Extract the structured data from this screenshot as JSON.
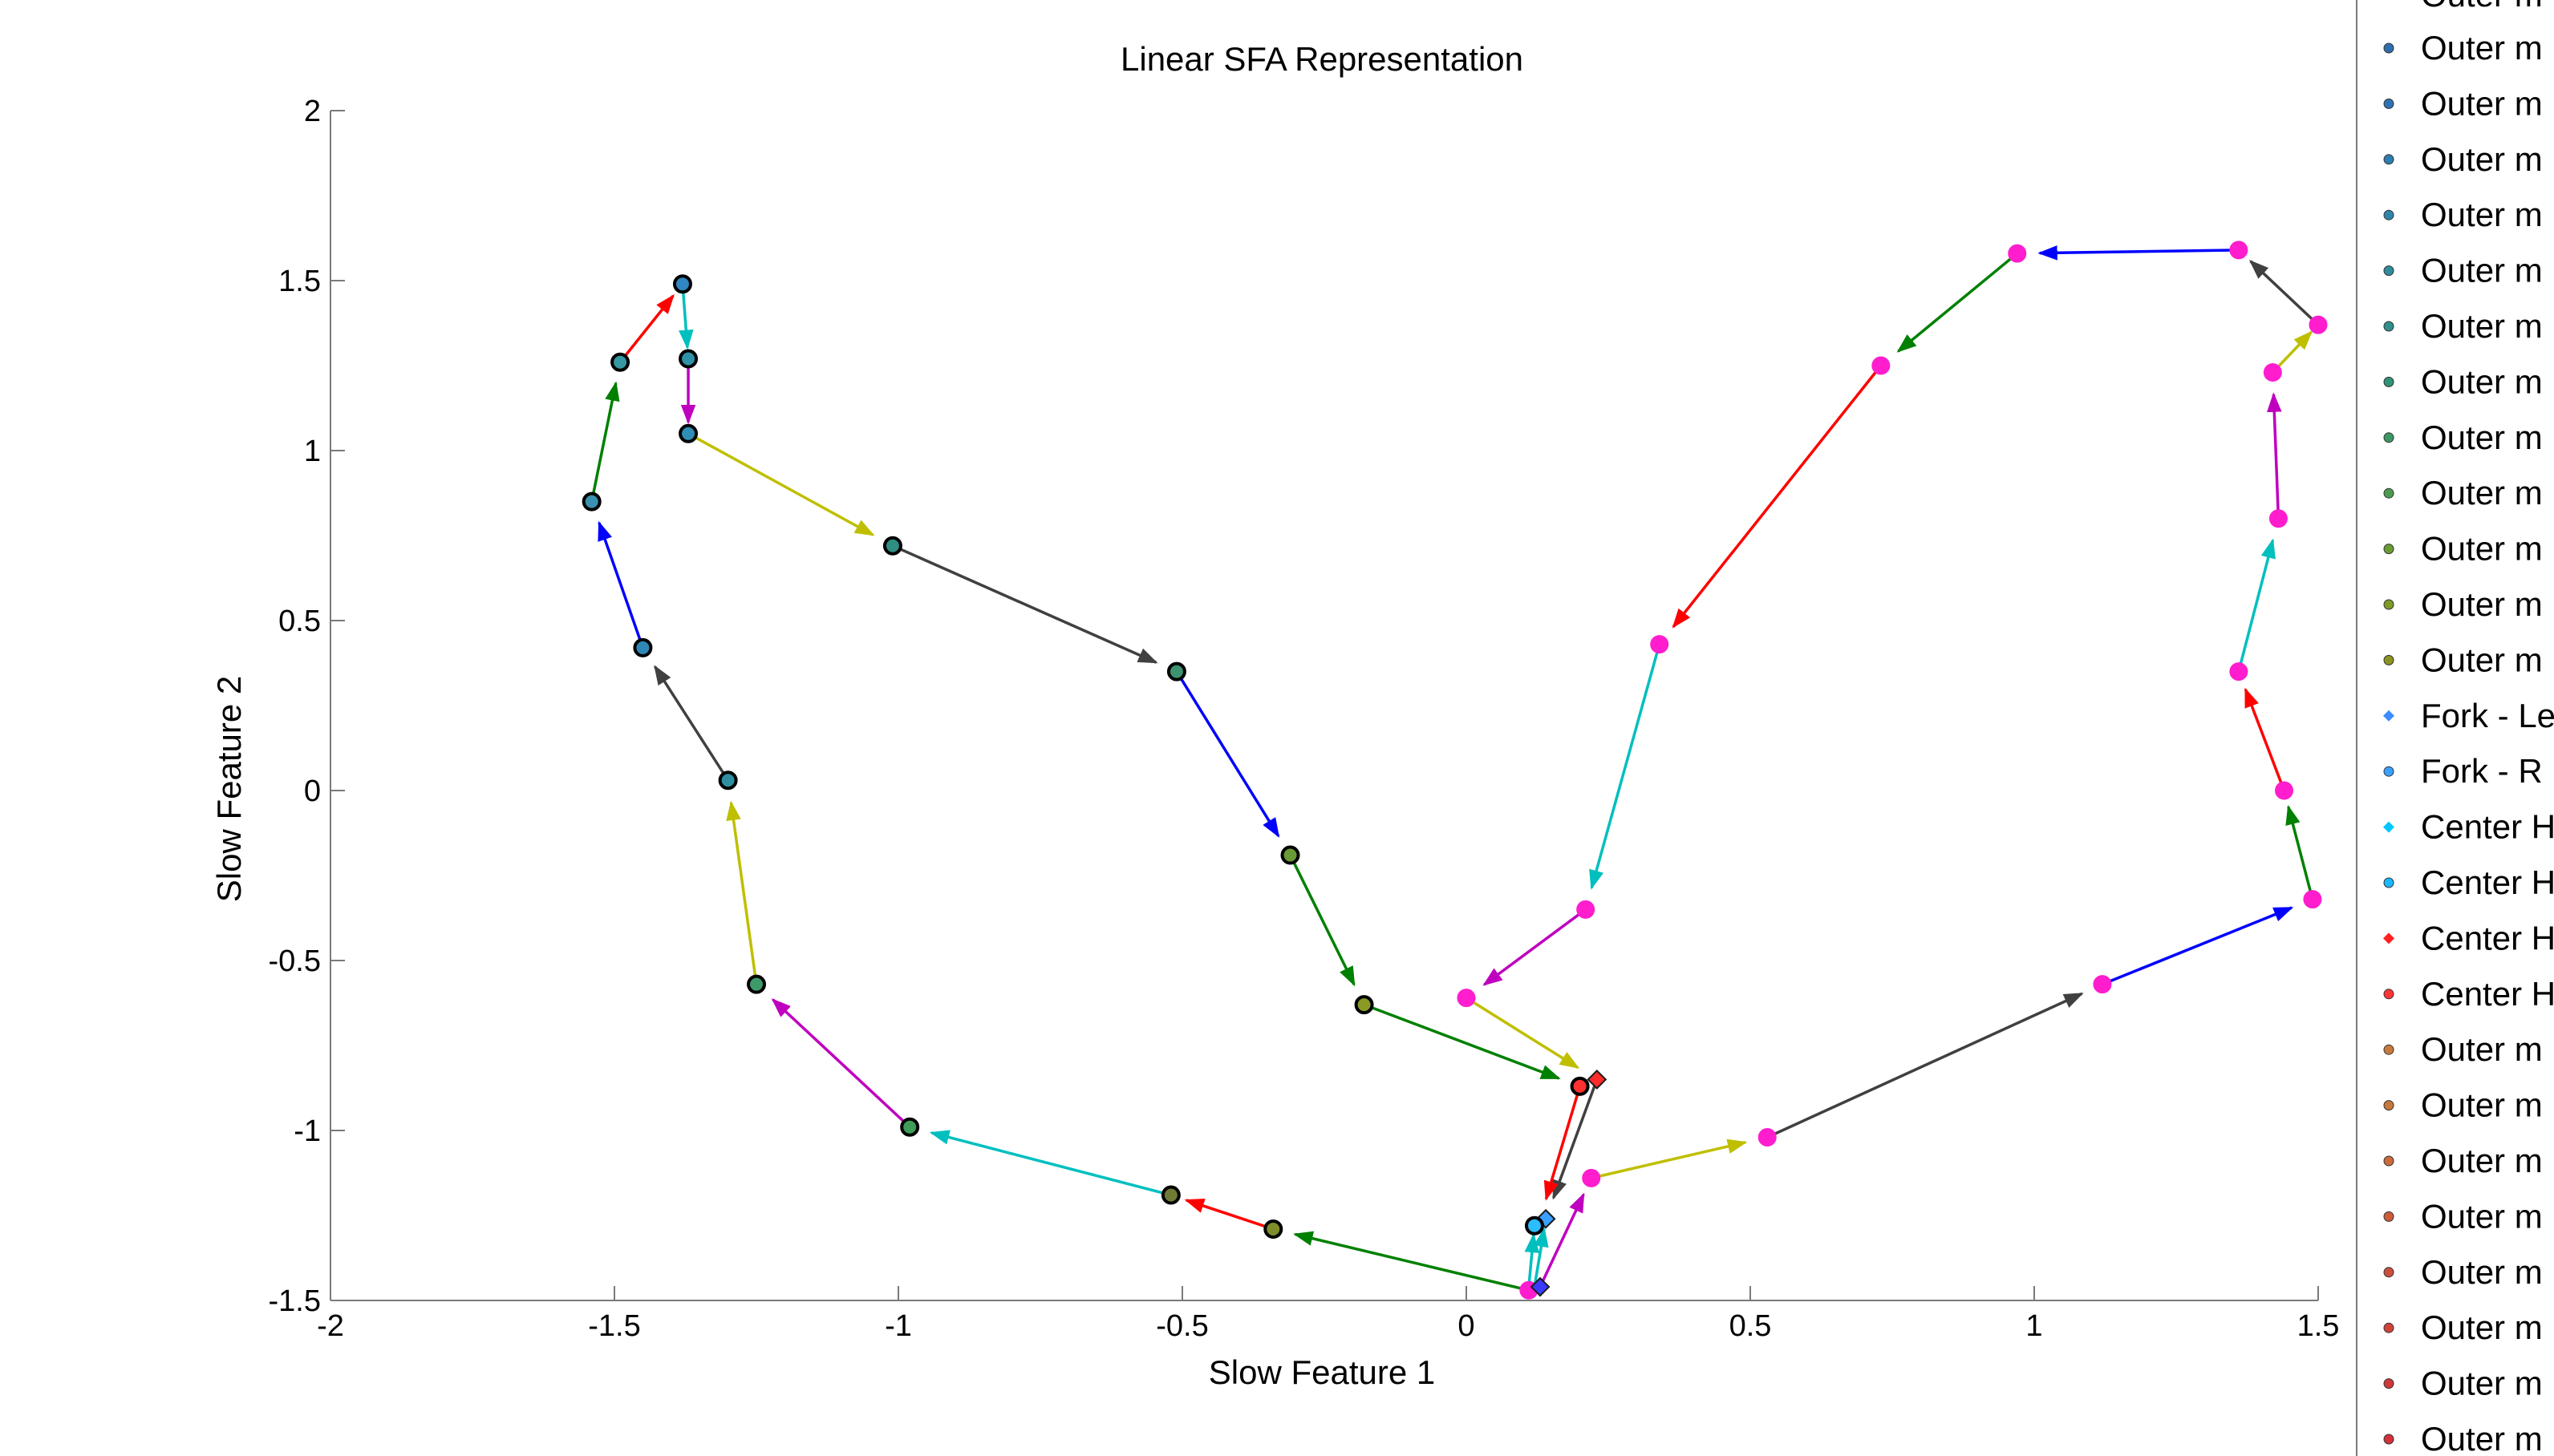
{
  "chart_data": {
    "type": "line",
    "title": "Linear SFA Representation",
    "xlabel": "Slow Feature 1",
    "ylabel": "Slow Feature 2",
    "xlim": [
      -2,
      1.5
    ],
    "ylim": [
      -1.5,
      2
    ],
    "xticks": [
      -2,
      -1.5,
      -1,
      -0.5,
      0,
      0.5,
      1,
      1.5
    ],
    "yticks": [
      -1.5,
      -1,
      -0.5,
      0,
      0.5,
      1,
      1.5,
      2
    ],
    "xtick_labels": [
      "-2",
      "-1.5",
      "-1",
      "-0.5",
      "0",
      "0.5",
      "1",
      "1.5"
    ],
    "ytick_labels": [
      "-1.5",
      "-1",
      "-0.5",
      "0",
      "0.5",
      "1",
      "1.5",
      "2"
    ],
    "grid": false,
    "legend_position": "right, clipped",
    "arrow_colors": [
      "#ff0000",
      "#00bfbf",
      "#bf00bf",
      "#bfbf00",
      "#404040",
      "#0000ff",
      "#008000"
    ],
    "series": [
      {
        "points": [
          {
            "x": 0.11,
            "y": -1.47,
            "color": "#ff1dce",
            "shape": "circle"
          },
          {
            "x": -0.34,
            "y": -1.29,
            "color": "#7f8c2a",
            "shape": "circle"
          },
          {
            "x": -0.52,
            "y": -1.19,
            "color": "#707b35",
            "shape": "circle"
          },
          {
            "x": -0.98,
            "y": -0.99,
            "color": "#3e9d58",
            "shape": "circle"
          },
          {
            "x": -1.25,
            "y": -0.57,
            "color": "#3d9a6b",
            "shape": "circle"
          },
          {
            "x": -1.3,
            "y": 0.03,
            "color": "#2f8fa0",
            "shape": "circle"
          },
          {
            "x": -1.45,
            "y": 0.42,
            "color": "#2f87b5",
            "shape": "circle"
          },
          {
            "x": -1.54,
            "y": 0.85,
            "color": "#3b92b0",
            "shape": "circle"
          },
          {
            "x": -1.49,
            "y": 1.26,
            "color": "#3598a3",
            "shape": "circle"
          },
          {
            "x": -1.38,
            "y": 1.49,
            "color": "#2f86c0",
            "shape": "circle"
          },
          {
            "x": -1.37,
            "y": 1.27,
            "color": "#2f91a8",
            "shape": "circle"
          },
          {
            "x": -1.37,
            "y": 1.05,
            "color": "#2f8eb6",
            "shape": "circle"
          },
          {
            "x": -1.01,
            "y": 0.72,
            "color": "#2f8d82",
            "shape": "circle"
          },
          {
            "x": -0.51,
            "y": 0.35,
            "color": "#3d9370",
            "shape": "circle"
          },
          {
            "x": -0.31,
            "y": -0.19,
            "color": "#6a9a35",
            "shape": "circle"
          },
          {
            "x": -0.18,
            "y": -0.63,
            "color": "#8a9a25",
            "shape": "circle"
          },
          {
            "x": 0.23,
            "y": -0.85,
            "color": "#ff2a2a",
            "shape": "diamond"
          },
          {
            "x": 0.14,
            "y": -1.26,
            "color": "#3aa0ff",
            "shape": "diamond"
          },
          {
            "x": 0.13,
            "y": -1.46,
            "color": "#3b3bff",
            "shape": "diamond"
          },
          {
            "x": 0.12,
            "y": -1.28,
            "color": "#2bbdff",
            "shape": "circle"
          },
          {
            "x": 0.2,
            "y": -0.87,
            "color": "#ff3030",
            "shape": "circle"
          },
          {
            "x": 0.22,
            "y": -1.14,
            "color": "#ff1dce",
            "shape": "circle"
          },
          {
            "x": 0.53,
            "y": -1.02,
            "color": "#ff1dce",
            "shape": "circle"
          },
          {
            "x": 1.12,
            "y": -0.57,
            "color": "#ff1dce",
            "shape": "circle"
          },
          {
            "x": 1.49,
            "y": -0.32,
            "color": "#ff1dce",
            "shape": "circle"
          },
          {
            "x": 1.44,
            "y": 0.0,
            "color": "#ff1dce",
            "shape": "circle"
          },
          {
            "x": 1.36,
            "y": 0.35,
            "color": "#ff1dce",
            "shape": "circle"
          },
          {
            "x": 1.43,
            "y": 0.8,
            "color": "#ff1dce",
            "shape": "circle"
          },
          {
            "x": 1.42,
            "y": 1.23,
            "color": "#ff1dce",
            "shape": "circle"
          },
          {
            "x": 1.5,
            "y": 1.37,
            "color": "#ff1dce",
            "shape": "circle"
          },
          {
            "x": 1.36,
            "y": 1.59,
            "color": "#ff1dce",
            "shape": "circle"
          },
          {
            "x": 0.97,
            "y": 1.58,
            "color": "#ff1dce",
            "shape": "circle"
          },
          {
            "x": 0.73,
            "y": 1.25,
            "color": "#ff1dce",
            "shape": "circle"
          },
          {
            "x": 0.34,
            "y": 0.43,
            "color": "#ff1dce",
            "shape": "circle"
          },
          {
            "x": 0.21,
            "y": -0.35,
            "color": "#ff1dce",
            "shape": "circle"
          },
          {
            "x": 0.0,
            "y": -0.61,
            "color": "#ff1dce",
            "shape": "circle"
          }
        ],
        "arrows": [
          {
            "from": [
              0.11,
              -1.47
            ],
            "to": [
              -0.34,
              -1.29
            ],
            "color": "#008000"
          },
          {
            "from": [
              -0.34,
              -1.29
            ],
            "to": [
              -0.52,
              -1.19
            ],
            "color": "#ff0000"
          },
          {
            "from": [
              -0.52,
              -1.19
            ],
            "to": [
              -0.98,
              -0.99
            ],
            "color": "#00bfbf"
          },
          {
            "from": [
              -0.98,
              -0.99
            ],
            "to": [
              -1.25,
              -0.57
            ],
            "color": "#bf00bf"
          },
          {
            "from": [
              -1.25,
              -0.57
            ],
            "to": [
              -1.3,
              0.03
            ],
            "color": "#bfbf00"
          },
          {
            "from": [
              -1.3,
              0.03
            ],
            "to": [
              -1.45,
              0.42
            ],
            "color": "#404040"
          },
          {
            "from": [
              -1.45,
              0.42
            ],
            "to": [
              -1.54,
              0.85
            ],
            "color": "#0000ff"
          },
          {
            "from": [
              -1.54,
              0.85
            ],
            "to": [
              -1.49,
              1.26
            ],
            "color": "#008000"
          },
          {
            "from": [
              -1.49,
              1.26
            ],
            "to": [
              -1.38,
              1.49
            ],
            "color": "#ff0000"
          },
          {
            "from": [
              -1.38,
              1.49
            ],
            "to": [
              -1.37,
              1.27
            ],
            "color": "#00bfbf"
          },
          {
            "from": [
              -1.37,
              1.27
            ],
            "to": [
              -1.37,
              1.05
            ],
            "color": "#bf00bf"
          },
          {
            "from": [
              -1.37,
              1.05
            ],
            "to": [
              -1.01,
              0.72
            ],
            "color": "#bfbf00"
          },
          {
            "from": [
              -1.01,
              0.72
            ],
            "to": [
              -0.51,
              0.35
            ],
            "color": "#404040"
          },
          {
            "from": [
              -0.51,
              0.35
            ],
            "to": [
              -0.31,
              -0.19
            ],
            "color": "#0000ff"
          },
          {
            "from": [
              -0.31,
              -0.19
            ],
            "to": [
              -0.18,
              -0.63
            ],
            "color": "#008000"
          },
          {
            "from": [
              -0.18,
              -0.63
            ],
            "to": [
              0.2,
              -0.87
            ],
            "color": "#008000"
          },
          {
            "from": [
              0.23,
              -0.85
            ],
            "to": [
              0.14,
              -1.26
            ],
            "color": "#404040"
          },
          {
            "from": [
              0.2,
              -0.87
            ],
            "to": [
              0.13,
              -1.26
            ],
            "color": "#ff0000"
          },
          {
            "from": [
              0.12,
              -1.46
            ],
            "to": [
              0.14,
              -1.26
            ],
            "color": "#00bfbf"
          },
          {
            "from": [
              0.11,
              -1.46
            ],
            "to": [
              0.12,
              -1.28
            ],
            "color": "#00bfbf"
          },
          {
            "from": [
              0.13,
              -1.46
            ],
            "to": [
              0.22,
              -1.14
            ],
            "color": "#bf00bf"
          },
          {
            "from": [
              0.22,
              -1.14
            ],
            "to": [
              0.53,
              -1.02
            ],
            "color": "#bfbf00"
          },
          {
            "from": [
              0.53,
              -1.02
            ],
            "to": [
              1.12,
              -0.57
            ],
            "color": "#404040"
          },
          {
            "from": [
              1.12,
              -0.57
            ],
            "to": [
              1.49,
              -0.32
            ],
            "color": "#0000ff"
          },
          {
            "from": [
              1.49,
              -0.32
            ],
            "to": [
              1.44,
              0.0
            ],
            "color": "#008000"
          },
          {
            "from": [
              1.44,
              0.0
            ],
            "to": [
              1.36,
              0.35
            ],
            "color": "#ff0000"
          },
          {
            "from": [
              1.36,
              0.35
            ],
            "to": [
              1.43,
              0.8
            ],
            "color": "#00bfbf"
          },
          {
            "from": [
              1.43,
              0.8
            ],
            "to": [
              1.42,
              1.23
            ],
            "color": "#bf00bf"
          },
          {
            "from": [
              1.42,
              1.23
            ],
            "to": [
              1.5,
              1.37
            ],
            "color": "#bfbf00"
          },
          {
            "from": [
              1.5,
              1.37
            ],
            "to": [
              1.36,
              1.59
            ],
            "color": "#404040"
          },
          {
            "from": [
              1.36,
              1.59
            ],
            "to": [
              0.97,
              1.58
            ],
            "color": "#0000ff"
          },
          {
            "from": [
              0.97,
              1.58
            ],
            "to": [
              0.73,
              1.25
            ],
            "color": "#008000"
          },
          {
            "from": [
              0.73,
              1.25
            ],
            "to": [
              0.34,
              0.43
            ],
            "color": "#ff0000"
          },
          {
            "from": [
              0.34,
              0.43
            ],
            "to": [
              0.21,
              -0.35
            ],
            "color": "#00bfbf"
          },
          {
            "from": [
              0.21,
              -0.35
            ],
            "to": [
              0.0,
              -0.61
            ],
            "color": "#bf00bf"
          },
          {
            "from": [
              0.0,
              -0.61
            ],
            "to": [
              0.23,
              -0.85
            ],
            "color": "#bfbf00"
          }
        ]
      }
    ]
  },
  "legend": {
    "items": [
      {
        "label": "Outer m",
        "color": "#2f6fae",
        "marker": "circle"
      },
      {
        "label": "Outer m",
        "color": "#2f72b3",
        "marker": "circle"
      },
      {
        "label": "Outer m",
        "color": "#2f7cb0",
        "marker": "circle"
      },
      {
        "label": "Outer m",
        "color": "#2f84a8",
        "marker": "circle"
      },
      {
        "label": "Outer m",
        "color": "#2f8c9c",
        "marker": "circle"
      },
      {
        "label": "Outer m",
        "color": "#2f8f8a",
        "marker": "circle"
      },
      {
        "label": "Outer m",
        "color": "#2f9378",
        "marker": "circle"
      },
      {
        "label": "Outer m",
        "color": "#3a9864",
        "marker": "circle"
      },
      {
        "label": "Outer m",
        "color": "#4c9a4e",
        "marker": "circle"
      },
      {
        "label": "Outer m",
        "color": "#6a9c36",
        "marker": "circle"
      },
      {
        "label": "Outer m",
        "color": "#7f9a25",
        "marker": "circle"
      },
      {
        "label": "Outer m",
        "color": "#8a9520",
        "marker": "circle"
      },
      {
        "label": "Fork - Le",
        "color": "#3a8cff",
        "marker": "diamond"
      },
      {
        "label": "Fork - R",
        "color": "#3aa0ff",
        "marker": "circle"
      },
      {
        "label": "Center H",
        "color": "#00c8ff",
        "marker": "diamond"
      },
      {
        "label": "Center H",
        "color": "#1ab8ff",
        "marker": "circle"
      },
      {
        "label": "Center H",
        "color": "#ff2020",
        "marker": "diamond"
      },
      {
        "label": "Center H",
        "color": "#ff3535",
        "marker": "circle"
      },
      {
        "label": "Outer m",
        "color": "#c87a3a",
        "marker": "circle"
      },
      {
        "label": "Outer m",
        "color": "#c8783a",
        "marker": "circle"
      },
      {
        "label": "Outer m",
        "color": "#cc6a3a",
        "marker": "circle"
      },
      {
        "label": "Outer m",
        "color": "#cc5c3a",
        "marker": "circle"
      },
      {
        "label": "Outer m",
        "color": "#cc4f3a",
        "marker": "circle"
      },
      {
        "label": "Outer m",
        "color": "#d0423a",
        "marker": "circle"
      },
      {
        "label": "Outer m",
        "color": "#d0383a",
        "marker": "circle"
      },
      {
        "label": "Outer m",
        "color": "#d4303a",
        "marker": "circle"
      }
    ]
  }
}
